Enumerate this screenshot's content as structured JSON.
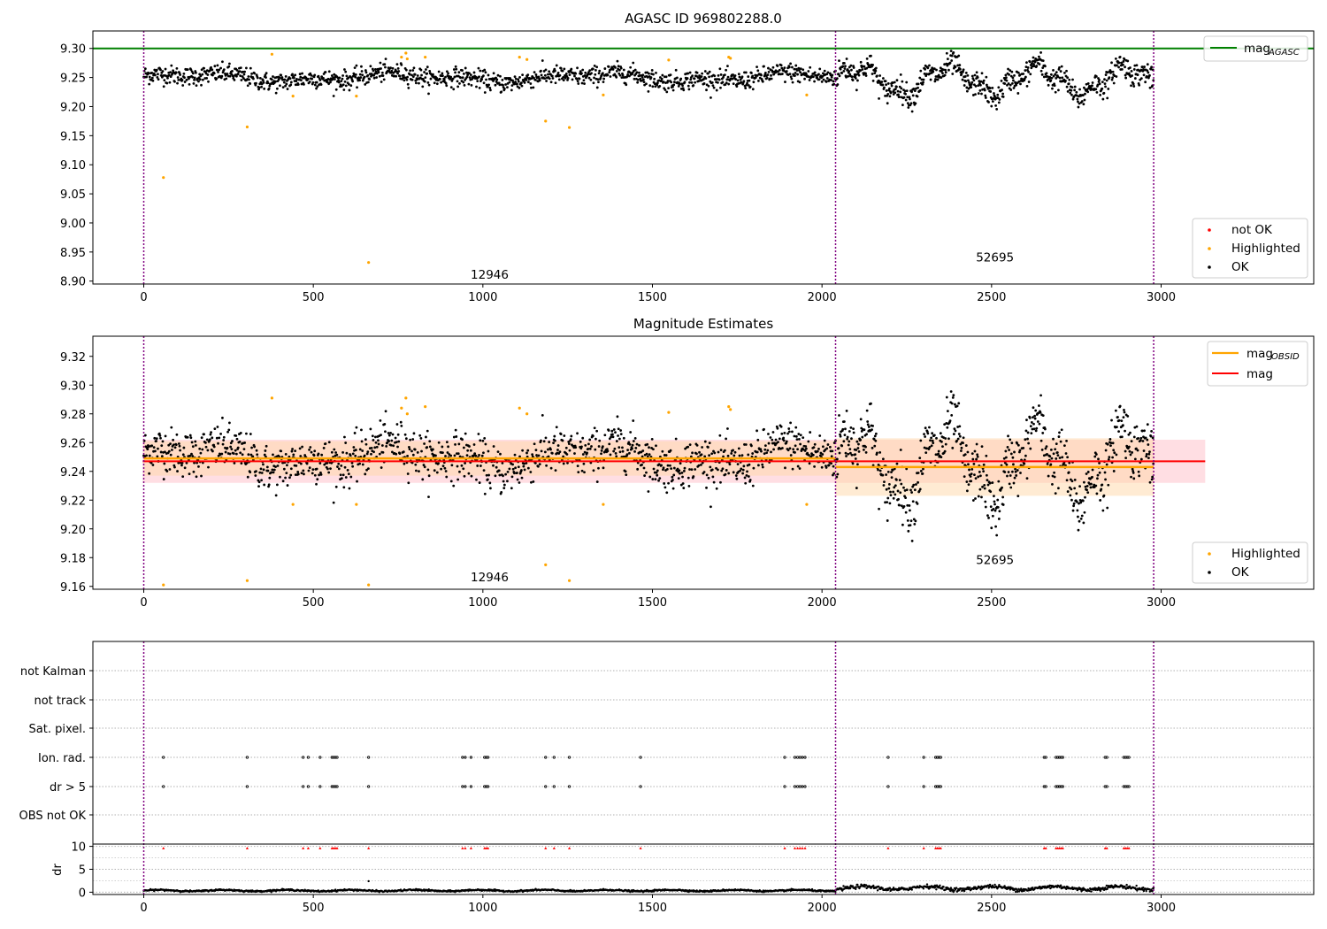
{
  "figure_title": "AGASC ID 969802288.0",
  "colors": {
    "ok": "#000000",
    "highlighted": "#ffa500",
    "not_ok": "#ff0000",
    "agasc_line": "#008000",
    "obsid_line": "#ffa500",
    "mag_line": "#ff0000",
    "boundary": "#800080",
    "mag_band": "#ffb6c1",
    "obsid_band": "#ffd8a8"
  },
  "chart_data": [
    {
      "type": "scatter",
      "title": "AGASC ID 969802288.0",
      "xlim": [
        -150,
        3450
      ],
      "ylim": [
        8.895,
        9.33
      ],
      "xticks": [
        "0",
        "500",
        "1000",
        "1500",
        "2000",
        "2500",
        "3000"
      ],
      "yticks": [
        "9.30",
        "9.25",
        "9.20",
        "9.15",
        "9.10",
        "9.05",
        "9.00",
        "8.95",
        "8.90"
      ],
      "agasc_mag": 9.3,
      "obsid_boundaries": [
        0,
        2040,
        2978
      ],
      "obsid_labels": [
        {
          "text": "12946",
          "x": 1020,
          "y": 8.91
        },
        {
          "text": "52695",
          "x": 2510,
          "y": 8.94
        }
      ],
      "legend_upper": [
        "mag$_{AGASC}$"
      ],
      "legend_lower": [
        "not OK",
        "Highlighted",
        "OK"
      ],
      "highlighted_points": [
        [
          58,
          9.078
        ],
        [
          305,
          9.165
        ],
        [
          378,
          9.29
        ],
        [
          440,
          9.218
        ],
        [
          627,
          9.218
        ],
        [
          663,
          8.932
        ],
        [
          760,
          9.285
        ],
        [
          773,
          9.292
        ],
        [
          777,
          9.282
        ],
        [
          830,
          9.285
        ],
        [
          1108,
          9.285
        ],
        [
          1130,
          9.281
        ],
        [
          1185,
          9.175
        ],
        [
          1255,
          9.164
        ],
        [
          1355,
          9.22
        ],
        [
          1548,
          9.28
        ],
        [
          1725,
          9.285
        ],
        [
          1730,
          9.283
        ],
        [
          1955,
          9.22
        ]
      ],
      "segments": [
        {
          "x": [
            0,
            2040
          ],
          "mean": 9.25,
          "spread": 0.022
        },
        {
          "x": [
            2040,
            2978
          ],
          "mean": 9.245,
          "spread": 0.035
        }
      ]
    },
    {
      "type": "scatter",
      "title": "Magnitude Estimates",
      "xlim": [
        -150,
        3450
      ],
      "ylim": [
        9.158,
        9.334
      ],
      "xticks": [
        "0",
        "500",
        "1000",
        "1500",
        "2000",
        "2500",
        "3000"
      ],
      "yticks": [
        "9.32",
        "9.30",
        "9.28",
        "9.26",
        "9.24",
        "9.22",
        "9.20",
        "9.18",
        "9.16"
      ],
      "mag": 9.247,
      "mag_band": [
        9.232,
        9.262
      ],
      "mag_x": [
        -3,
        3130
      ],
      "obsid_mags": [
        {
          "x": [
            0,
            2040
          ],
          "mag": 9.249,
          "band": [
            9.237,
            9.261
          ]
        },
        {
          "x": [
            2040,
            2978
          ],
          "mag": 9.243,
          "band": [
            9.223,
            9.263
          ]
        }
      ],
      "obsid_boundaries": [
        0,
        2040,
        2978
      ],
      "obsid_labels": [
        {
          "text": "12946",
          "x": 1020,
          "y": 9.166
        },
        {
          "text": "52695",
          "x": 2510,
          "y": 9.178
        }
      ],
      "legend_upper": [
        "mag$_{OBSID}$",
        "mag"
      ],
      "legend_lower": [
        "Highlighted",
        "OK"
      ],
      "highlighted_points": [
        [
          58,
          9.161
        ],
        [
          305,
          9.164
        ],
        [
          378,
          9.291
        ],
        [
          440,
          9.217
        ],
        [
          627,
          9.217
        ],
        [
          663,
          9.161
        ],
        [
          760,
          9.284
        ],
        [
          773,
          9.291
        ],
        [
          777,
          9.28
        ],
        [
          830,
          9.285
        ],
        [
          1108,
          9.284
        ],
        [
          1130,
          9.28
        ],
        [
          1185,
          9.175
        ],
        [
          1255,
          9.164
        ],
        [
          1355,
          9.217
        ],
        [
          1548,
          9.281
        ],
        [
          1725,
          9.285
        ],
        [
          1730,
          9.283
        ],
        [
          1955,
          9.217
        ]
      ]
    },
    {
      "type": "scatter",
      "title": "",
      "xlim": [
        -150,
        3450
      ],
      "xticks": [
        "0",
        "500",
        "1000",
        "1500",
        "2000",
        "2500",
        "3000"
      ],
      "flag_rows": [
        "not Kalman",
        "not track",
        "Sat. pixel.",
        "Ion. rad.",
        "dr > 5",
        "OBS not OK"
      ],
      "flagged_times": [
        58,
        305,
        470,
        485,
        520,
        555,
        560,
        565,
        570,
        663,
        940,
        948,
        965,
        1005,
        1010,
        1015,
        1185,
        1210,
        1255,
        1465,
        1890,
        1920,
        1928,
        1935,
        1942,
        1950,
        2195,
        2300,
        2335,
        2340,
        2345,
        2350,
        2655,
        2660,
        2690,
        2695,
        2700,
        2705,
        2710,
        2835,
        2840,
        2890,
        2895,
        2900,
        2905
      ],
      "dr_ylabel": "dr",
      "dr_yticks": [
        "10",
        "5",
        "0"
      ],
      "dr_ylim": [
        -0.5,
        10.5
      ],
      "dr_segments": [
        {
          "x": [
            0,
            2040
          ],
          "mean": 0.35,
          "spread": 0.25
        },
        {
          "x": [
            2040,
            2978
          ],
          "mean": 0.9,
          "spread": 0.6
        }
      ],
      "dr_outlier": [
        663,
        2.4
      ]
    }
  ]
}
